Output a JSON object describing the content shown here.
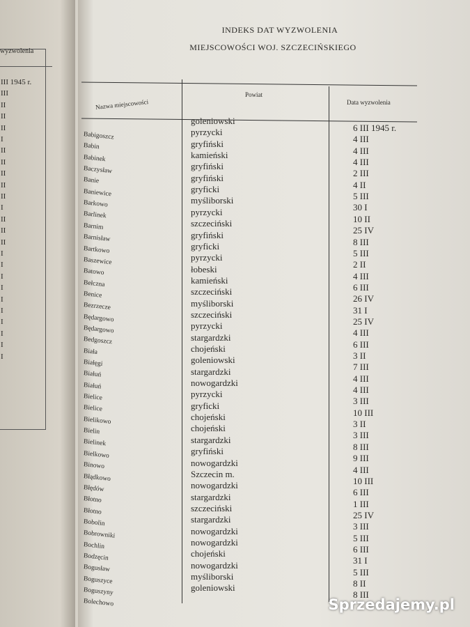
{
  "left_page": {
    "header": "wyzwolenia",
    "entries": [
      "III 1945 r.",
      "III",
      "II",
      "II",
      "II",
      "I",
      "II",
      "II",
      "II",
      "II",
      "II",
      "I",
      "II",
      "II",
      "II",
      "I",
      "I",
      "I",
      "I",
      "I",
      "I",
      "I",
      "I",
      "I",
      "I"
    ]
  },
  "header": {
    "title": "INDEKS DAT WYZWOLENIA",
    "subtitle": "MIEJSCOWOŚCI WOJ. SZCZECIŃSKIEGO"
  },
  "table": {
    "columns": [
      "Nazwa miejscowości",
      "Powiat",
      "Data wyzwolenia"
    ],
    "rows": [
      [
        "Babigoszcz",
        "goleniowski",
        "6 III 1945 r."
      ],
      [
        "Babin",
        "pyrzycki",
        "4 III"
      ],
      [
        "Babinek",
        "gryfiński",
        "4 III"
      ],
      [
        "Baczysław",
        "kamieński",
        "4 III"
      ],
      [
        "Banie",
        "gryfiński",
        "2 III"
      ],
      [
        "Baniewice",
        "gryfiński",
        "4 II"
      ],
      [
        "Barkowo",
        "gryficki",
        "5 III"
      ],
      [
        "Barlinek",
        "myśliborski",
        "30 I"
      ],
      [
        "Barnim",
        "pyrzycki",
        "10 II"
      ],
      [
        "Barnisław",
        "szczeciński",
        "25 IV"
      ],
      [
        "Bartkowo",
        "gryfiński",
        "8 III"
      ],
      [
        "Baszewice",
        "gryficki",
        "5 III"
      ],
      [
        "Batowo",
        "pyrzycki",
        "2 II"
      ],
      [
        "Bełczna",
        "łobeski",
        "4 III"
      ],
      [
        "Benice",
        "kamieński",
        "6 III"
      ],
      [
        "Bezrzecze",
        "szczeciński",
        "26 IV"
      ],
      [
        "Będargowo",
        "myśliborski",
        "31 I"
      ],
      [
        "Będargowo",
        "szczeciński",
        "25 IV"
      ],
      [
        "Bedgoszcz",
        "pyrzycki",
        "4 III"
      ],
      [
        "Biała",
        "stargardzki",
        "6 III"
      ],
      [
        "Białęgi",
        "chojeński",
        "3 II"
      ],
      [
        "Białuń",
        "goleniowski",
        "7 III"
      ],
      [
        "Białuń",
        "stargardzki",
        "4 III"
      ],
      [
        "Bielice",
        "nowogardzki",
        "4 III"
      ],
      [
        "Bielice",
        "pyrzycki",
        "3 III"
      ],
      [
        "Bielikowo",
        "gryficki",
        "10 III"
      ],
      [
        "Bielin",
        "chojeński",
        "3 II"
      ],
      [
        "Bielinek",
        "chojeński",
        "3 III"
      ],
      [
        "Bielkowo",
        "stargardzki",
        "8 III"
      ],
      [
        "Binowo",
        "gryfiński",
        "9 III"
      ],
      [
        "Błądkowo",
        "nowogardzki",
        "4 III"
      ],
      [
        "Błędów",
        "Szczecin m.",
        "10 III"
      ],
      [
        "Błotno",
        "nowogardzki",
        "6 III"
      ],
      [
        "Błotno",
        "stargardzki",
        "1 III"
      ],
      [
        "Bobolin",
        "szczeciński",
        "25 IV"
      ],
      [
        "Bobrowniki",
        "stargardzki",
        "3 III"
      ],
      [
        "Bochlin",
        "nowogardzki",
        "5 III"
      ],
      [
        "Bodzęcin",
        "nowogardzki",
        "6 III"
      ],
      [
        "Bogusław",
        "chojeński",
        "31 I"
      ],
      [
        "Boguszyce",
        "nowogardzki",
        "5 III"
      ],
      [
        "Boguszyny",
        "myśliborski",
        "8 II"
      ],
      [
        "Bolechowo",
        "goleniowski",
        "8 III"
      ]
    ]
  },
  "watermark": "Sprzedajemy.pl"
}
